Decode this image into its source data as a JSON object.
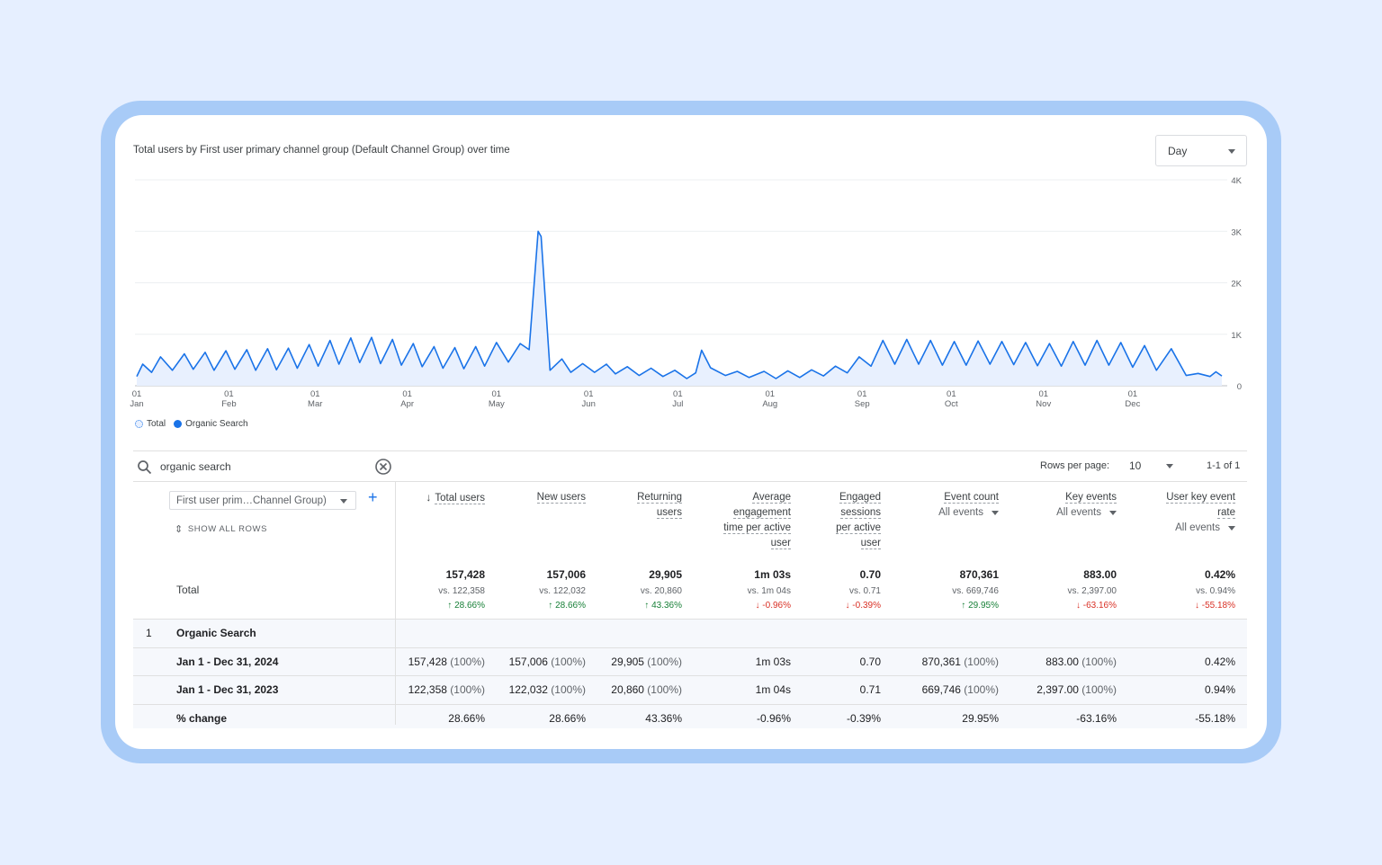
{
  "chart": {
    "title": "Total users by First user primary channel group (Default Channel Group) over time",
    "period_select": "Day",
    "y_ticks": [
      "4K",
      "3K",
      "2K",
      "1K",
      "0"
    ],
    "x_ticks": [
      {
        "d": "01",
        "m": "Jan"
      },
      {
        "d": "01",
        "m": "Feb"
      },
      {
        "d": "01",
        "m": "Mar"
      },
      {
        "d": "01",
        "m": "Apr"
      },
      {
        "d": "01",
        "m": "May"
      },
      {
        "d": "01",
        "m": "Jun"
      },
      {
        "d": "01",
        "m": "Jul"
      },
      {
        "d": "01",
        "m": "Aug"
      },
      {
        "d": "01",
        "m": "Sep"
      },
      {
        "d": "01",
        "m": "Oct"
      },
      {
        "d": "01",
        "m": "Nov"
      },
      {
        "d": "01",
        "m": "Dec"
      }
    ],
    "legend": [
      {
        "label": "Total"
      },
      {
        "label": "Organic Search"
      }
    ]
  },
  "chart_data": {
    "type": "line",
    "ylim": [
      0,
      4000
    ],
    "x_range": [
      "2024-01-01",
      "2024-12-31"
    ],
    "series": [
      {
        "name": "Organic Search",
        "points": [
          [
            "2024-01-01",
            180
          ],
          [
            "2024-01-03",
            420
          ],
          [
            "2024-01-06",
            260
          ],
          [
            "2024-01-09",
            560
          ],
          [
            "2024-01-13",
            300
          ],
          [
            "2024-01-17",
            620
          ],
          [
            "2024-01-20",
            320
          ],
          [
            "2024-01-24",
            650
          ],
          [
            "2024-01-27",
            300
          ],
          [
            "2024-01-31",
            680
          ],
          [
            "2024-02-03",
            320
          ],
          [
            "2024-02-07",
            700
          ],
          [
            "2024-02-10",
            300
          ],
          [
            "2024-02-14",
            720
          ],
          [
            "2024-02-17",
            310
          ],
          [
            "2024-02-21",
            730
          ],
          [
            "2024-02-24",
            340
          ],
          [
            "2024-02-28",
            800
          ],
          [
            "2024-03-02",
            380
          ],
          [
            "2024-03-06",
            880
          ],
          [
            "2024-03-09",
            420
          ],
          [
            "2024-03-13",
            930
          ],
          [
            "2024-03-16",
            450
          ],
          [
            "2024-03-20",
            940
          ],
          [
            "2024-03-23",
            430
          ],
          [
            "2024-03-27",
            900
          ],
          [
            "2024-03-30",
            400
          ],
          [
            "2024-04-03",
            820
          ],
          [
            "2024-04-06",
            370
          ],
          [
            "2024-04-10",
            760
          ],
          [
            "2024-04-13",
            340
          ],
          [
            "2024-04-17",
            740
          ],
          [
            "2024-04-20",
            330
          ],
          [
            "2024-04-24",
            760
          ],
          [
            "2024-04-27",
            380
          ],
          [
            "2024-05-01",
            840
          ],
          [
            "2024-05-05",
            460
          ],
          [
            "2024-05-09",
            820
          ],
          [
            "2024-05-12",
            700
          ],
          [
            "2024-05-15",
            3000
          ],
          [
            "2024-05-16",
            2900
          ],
          [
            "2024-05-19",
            300
          ],
          [
            "2024-05-23",
            520
          ],
          [
            "2024-05-26",
            260
          ],
          [
            "2024-05-30",
            430
          ],
          [
            "2024-06-03",
            260
          ],
          [
            "2024-06-07",
            420
          ],
          [
            "2024-06-10",
            230
          ],
          [
            "2024-06-14",
            370
          ],
          [
            "2024-06-18",
            200
          ],
          [
            "2024-06-22",
            340
          ],
          [
            "2024-06-26",
            180
          ],
          [
            "2024-06-30",
            300
          ],
          [
            "2024-07-04",
            140
          ],
          [
            "2024-07-07",
            250
          ],
          [
            "2024-07-09",
            690
          ],
          [
            "2024-07-12",
            350
          ],
          [
            "2024-07-17",
            200
          ],
          [
            "2024-07-21",
            280
          ],
          [
            "2024-07-25",
            160
          ],
          [
            "2024-07-30",
            280
          ],
          [
            "2024-08-03",
            140
          ],
          [
            "2024-08-07",
            290
          ],
          [
            "2024-08-11",
            160
          ],
          [
            "2024-08-15",
            310
          ],
          [
            "2024-08-19",
            190
          ],
          [
            "2024-08-23",
            380
          ],
          [
            "2024-08-27",
            250
          ],
          [
            "2024-08-31",
            560
          ],
          [
            "2024-09-04",
            380
          ],
          [
            "2024-09-08",
            880
          ],
          [
            "2024-09-12",
            420
          ],
          [
            "2024-09-16",
            900
          ],
          [
            "2024-09-20",
            420
          ],
          [
            "2024-09-24",
            880
          ],
          [
            "2024-09-28",
            400
          ],
          [
            "2024-10-02",
            860
          ],
          [
            "2024-10-06",
            400
          ],
          [
            "2024-10-10",
            870
          ],
          [
            "2024-10-14",
            420
          ],
          [
            "2024-10-18",
            860
          ],
          [
            "2024-10-22",
            410
          ],
          [
            "2024-10-26",
            840
          ],
          [
            "2024-10-30",
            390
          ],
          [
            "2024-11-03",
            820
          ],
          [
            "2024-11-07",
            380
          ],
          [
            "2024-11-11",
            860
          ],
          [
            "2024-11-15",
            400
          ],
          [
            "2024-11-19",
            880
          ],
          [
            "2024-11-23",
            400
          ],
          [
            "2024-11-27",
            840
          ],
          [
            "2024-12-01",
            360
          ],
          [
            "2024-12-05",
            780
          ],
          [
            "2024-12-09",
            300
          ],
          [
            "2024-12-14",
            720
          ],
          [
            "2024-12-19",
            200
          ],
          [
            "2024-12-23",
            240
          ],
          [
            "2024-12-27",
            180
          ],
          [
            "2024-12-29",
            270
          ],
          [
            "2024-12-31",
            190
          ]
        ]
      }
    ]
  },
  "table": {
    "search_value": "organic search",
    "rows_per_page_label": "Rows per page:",
    "rows_per_page": "10",
    "pager": "1-1 of 1",
    "dimension_select": "First user prim…Channel Group)",
    "show_all_rows": "SHOW ALL ROWS",
    "columns": [
      {
        "lines": [
          "Total users"
        ],
        "sort": "↓",
        "sub": ""
      },
      {
        "lines": [
          "New users"
        ],
        "sub": ""
      },
      {
        "lines": [
          "Returning",
          "users"
        ],
        "sub": ""
      },
      {
        "lines": [
          "Average",
          "engagement",
          "time per active",
          "user"
        ],
        "sub": ""
      },
      {
        "lines": [
          "Engaged",
          "sessions",
          "per active",
          "user"
        ],
        "sub": ""
      },
      {
        "lines": [
          "Event count"
        ],
        "sub": "All events"
      },
      {
        "lines": [
          "Key events"
        ],
        "sub": "All events"
      },
      {
        "lines": [
          "User key event",
          "rate"
        ],
        "sub": "All events"
      }
    ],
    "total_label": "Total",
    "totals": [
      {
        "value": "157,428",
        "vs": "vs. 122,358",
        "change": "↑ 28.66%",
        "dir": "up"
      },
      {
        "value": "157,006",
        "vs": "vs. 122,032",
        "change": "↑ 28.66%",
        "dir": "up"
      },
      {
        "value": "29,905",
        "vs": "vs. 20,860",
        "change": "↑ 43.36%",
        "dir": "up"
      },
      {
        "value": "1m 03s",
        "vs": "vs. 1m 04s",
        "change": "↓ -0.96%",
        "dir": "down"
      },
      {
        "value": "0.70",
        "vs": "vs. 0.71",
        "change": "↓ -0.39%",
        "dir": "down"
      },
      {
        "value": "870,361",
        "vs": "vs. 669,746",
        "change": "↑ 29.95%",
        "dir": "up"
      },
      {
        "value": "883.00",
        "vs": "vs. 2,397.00",
        "change": "↓ -63.16%",
        "dir": "down"
      },
      {
        "value": "0.42%",
        "vs": "vs. 0.94%",
        "change": "↓ -55.18%",
        "dir": "down"
      }
    ],
    "group_index": "1",
    "group_label": "Organic Search",
    "rows": [
      {
        "label": "Jan 1 - Dec 31, 2024",
        "cells": [
          {
            "v": "157,428",
            "p": "(100%)"
          },
          {
            "v": "157,006",
            "p": "(100%)"
          },
          {
            "v": "29,905",
            "p": "(100%)"
          },
          {
            "v": "1m 03s",
            "p": ""
          },
          {
            "v": "0.70",
            "p": ""
          },
          {
            "v": "870,361",
            "p": "(100%)"
          },
          {
            "v": "883.00",
            "p": "(100%)"
          },
          {
            "v": "0.42%",
            "p": ""
          }
        ]
      },
      {
        "label": "Jan 1 - Dec 31, 2023",
        "cells": [
          {
            "v": "122,358",
            "p": "(100%)"
          },
          {
            "v": "122,032",
            "p": "(100%)"
          },
          {
            "v": "20,860",
            "p": "(100%)"
          },
          {
            "v": "1m 04s",
            "p": ""
          },
          {
            "v": "0.71",
            "p": ""
          },
          {
            "v": "669,746",
            "p": "(100%)"
          },
          {
            "v": "2,397.00",
            "p": "(100%)"
          },
          {
            "v": "0.94%",
            "p": ""
          }
        ]
      },
      {
        "label": "% change",
        "cells": [
          {
            "v": "28.66%",
            "p": ""
          },
          {
            "v": "28.66%",
            "p": ""
          },
          {
            "v": "43.36%",
            "p": ""
          },
          {
            "v": "-0.96%",
            "p": ""
          },
          {
            "v": "-0.39%",
            "p": ""
          },
          {
            "v": "29.95%",
            "p": ""
          },
          {
            "v": "-63.16%",
            "p": ""
          },
          {
            "v": "-55.18%",
            "p": ""
          }
        ]
      }
    ]
  },
  "colors": {
    "accent": "#1a73e8",
    "up": "#188038",
    "down": "#d93025"
  }
}
